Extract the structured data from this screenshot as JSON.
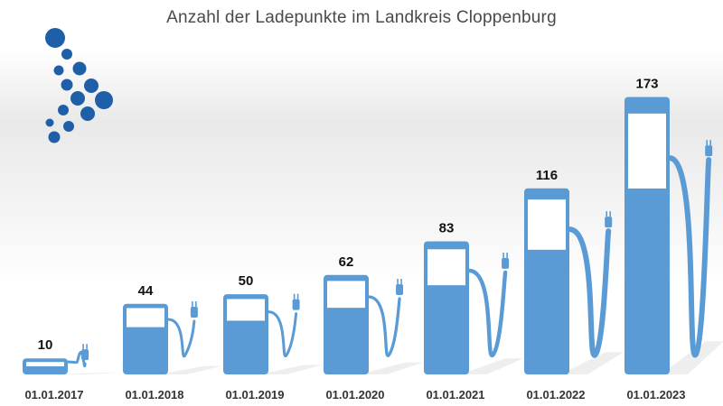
{
  "title": "Anzahl der Ladepunkte im Landkreis Cloppenburg",
  "colors": {
    "pump": "#5b9bd5",
    "logo": "#1f5fa8",
    "text": "#111111"
  },
  "logo": {
    "icon": "dot-cluster-logo"
  },
  "chart_data": {
    "type": "bar",
    "categories": [
      "01.01.2017",
      "01.01.2018",
      "01.01.2019",
      "01.01.2020",
      "01.01.2021",
      "01.01.2022",
      "01.01.2023"
    ],
    "values": [
      10,
      44,
      50,
      62,
      83,
      116,
      173
    ],
    "title": "Anzahl der Ladepunkte im Landkreis Cloppenburg",
    "xlabel": "",
    "ylabel": "",
    "ylim": [
      0,
      180
    ],
    "grid": false,
    "legend": "none",
    "data_labels": [
      "10",
      "44",
      "50",
      "62",
      "83",
      "116",
      "173"
    ],
    "mark": "fuel-pump-icon"
  }
}
